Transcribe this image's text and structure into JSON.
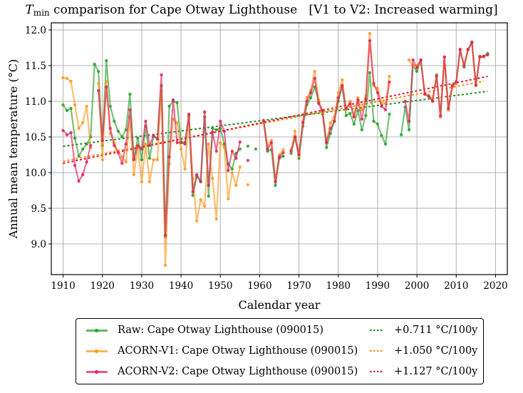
{
  "title": {
    "var": "T",
    "sub": "min",
    "rest": " comparison for Cape Otway Lighthouse",
    "bracket": "[V1 to V2: Increased warming]"
  },
  "chart_data": {
    "type": "line",
    "title": "T_min comparison for Cape Otway Lighthouse   [V1 to V2: Increased warming]",
    "xlabel": "Calendar year",
    "ylabel": "Annual mean temperature (°C)",
    "xlim": [
      1907,
      2023
    ],
    "ylim": [
      8.57,
      12.1
    ],
    "xticks": [
      1910,
      1920,
      1930,
      1940,
      1950,
      1960,
      1970,
      1980,
      1990,
      2000,
      2010,
      2020
    ],
    "yticks": [
      9.0,
      9.5,
      10.0,
      10.5,
      11.0,
      11.5,
      12.0
    ],
    "ytick_labels": [
      "9.0",
      "9.5",
      "10.0",
      "10.5",
      "11.0",
      "11.5",
      "12.0"
    ],
    "grid": true,
    "legend_position": "bottom-outside",
    "series": [
      {
        "name": "Raw: Cape Otway Lighthouse (090015)",
        "color": "#2ca02c",
        "years": [
          1910,
          1911,
          1912,
          1913,
          1914,
          1915,
          1916,
          1917,
          1918,
          1919,
          1920,
          1921,
          1922,
          1923,
          1924,
          1925,
          1926,
          1927,
          1928,
          1929,
          1930,
          1931,
          1932,
          1933,
          1934,
          1935,
          1936,
          1937,
          1938,
          1939,
          1940,
          1941,
          1942,
          1943,
          1944,
          1945,
          1946,
          1947,
          1948,
          1949,
          1950,
          1951,
          1952,
          1953,
          1954,
          1955,
          null,
          1957,
          null,
          1959,
          null,
          1961,
          1962,
          1963,
          1964,
          1965,
          1966,
          null,
          1968,
          1969,
          1970,
          1971,
          1972,
          1973,
          1974,
          1975,
          1976,
          1977,
          1978,
          1979,
          1980,
          1981,
          1982,
          1983,
          1984,
          1985,
          1986,
          1987,
          1988,
          1989,
          1990,
          1991,
          1992,
          1993,
          null,
          1996,
          1997,
          1998,
          1999,
          2000,
          2001,
          2002,
          2003,
          2004,
          2005,
          2006,
          2007,
          2008,
          2009,
          2010,
          2011,
          2012,
          2013,
          2014,
          2015,
          2016,
          2017,
          2018
        ],
        "values": [
          10.95,
          10.87,
          10.9,
          10.48,
          10.23,
          10.33,
          10.4,
          10.5,
          11.52,
          11.42,
          10.38,
          11.57,
          10.93,
          10.72,
          10.58,
          10.5,
          10.6,
          11.1,
          10.2,
          10.48,
          10.18,
          10.65,
          10.2,
          10.51,
          10.47,
          11.22,
          9.1,
          10.93,
          11.0,
          10.98,
          10.43,
          10.42,
          10.8,
          9.68,
          9.95,
          9.87,
          10.78,
          9.67,
          10.62,
          10.6,
          10.62,
          10.4,
          10.12,
          10.05,
          10.27,
          10.33,
          null,
          10.37,
          null,
          10.33,
          null,
          10.72,
          10.3,
          10.32,
          9.82,
          10.2,
          10.23,
          null,
          10.27,
          10.5,
          10.2,
          10.65,
          10.95,
          11.05,
          11.2,
          11.0,
          10.82,
          10.35,
          10.55,
          10.72,
          11.0,
          11.2,
          10.8,
          10.83,
          10.68,
          10.87,
          10.6,
          10.8,
          11.4,
          10.72,
          10.68,
          10.52,
          10.4,
          10.82,
          null,
          10.53,
          10.92,
          10.6,
          11.5,
          11.42,
          11.57,
          11.1,
          11.07,
          11.02,
          11.37,
          10.78,
          11.62,
          10.88,
          11.2,
          11.27,
          11.73,
          11.48,
          11.72,
          11.82,
          11.22,
          11.63,
          11.63,
          11.67
        ]
      },
      {
        "name": "ACORN-V1: Cape Otway Lighthouse (090015)",
        "color": "#ff9a1f",
        "years": [
          1910,
          1911,
          1912,
          1913,
          1914,
          1915,
          1916,
          1917,
          1918,
          1919,
          1920,
          1921,
          1922,
          1923,
          1924,
          1925,
          1926,
          1927,
          1928,
          1929,
          1930,
          1931,
          1932,
          1933,
          1934,
          1935,
          1936,
          1937,
          1938,
          1939,
          1940,
          1941,
          1942,
          1943,
          1944,
          1945,
          1946,
          1947,
          1948,
          1949,
          1950,
          1951,
          1952,
          1953,
          1954,
          1955,
          null,
          1957,
          null,
          1961,
          1962,
          1963,
          1964,
          1965,
          1966,
          null,
          1968,
          1969,
          1970,
          1971,
          1972,
          1973,
          1974,
          1975,
          1976,
          1977,
          1978,
          1979,
          1980,
          1981,
          1982,
          1983,
          1984,
          1985,
          1986,
          1987,
          1988,
          1989,
          1990,
          1991,
          1992,
          1993,
          null,
          1998,
          1999,
          2000,
          2001,
          2002,
          2003,
          2004,
          2005,
          2006,
          2007,
          2008,
          2009,
          2010,
          2011,
          2012,
          2013,
          2014,
          2015,
          2016,
          2017
        ],
        "values": [
          11.33,
          11.32,
          11.28,
          10.95,
          10.62,
          10.7,
          10.93,
          10.35,
          null,
          11.25,
          10.18,
          11.28,
          10.55,
          10.42,
          10.3,
          10.22,
          10.15,
          10.78,
          9.97,
          10.35,
          9.87,
          10.4,
          9.87,
          10.18,
          10.18,
          11.15,
          8.7,
          10.12,
          10.75,
          10.7,
          10.33,
          10.05,
          10.77,
          9.92,
          9.32,
          9.62,
          9.53,
          10.4,
          9.92,
          9.35,
          10.42,
          10.35,
          9.63,
          10.0,
          9.82,
          10.08,
          null,
          9.83,
          null,
          10.73,
          10.38,
          10.45,
          9.88,
          10.25,
          10.32,
          null,
          10.32,
          10.58,
          10.23,
          10.72,
          11.05,
          11.15,
          11.42,
          11.02,
          10.85,
          10.43,
          10.7,
          10.78,
          11.12,
          11.3,
          10.88,
          11.0,
          10.8,
          11.05,
          10.88,
          11.07,
          11.95,
          11.22,
          11.18,
          10.98,
          10.97,
          11.35,
          null,
          11.58,
          11.5,
          11.5,
          11.58,
          11.1,
          11.08,
          11.03,
          11.35,
          10.78,
          11.62,
          10.88,
          11.2,
          11.25,
          11.72,
          11.5,
          11.72,
          11.83,
          11.22,
          11.62,
          11.62
        ]
      },
      {
        "name": "ACORN-V2: Cape Otway Lighthouse (090015)",
        "color": "#e0245a",
        "years": [
          1910,
          1911,
          1912,
          1913,
          1914,
          1915,
          1916,
          1917,
          1918,
          1919,
          1920,
          1921,
          1922,
          1923,
          1924,
          1925,
          1926,
          1927,
          1928,
          1929,
          1930,
          1931,
          1932,
          1933,
          1934,
          1935,
          1936,
          1937,
          1938,
          1939,
          1940,
          1941,
          1942,
          1943,
          1944,
          1945,
          1946,
          1947,
          1948,
          1949,
          1950,
          1951,
          1952,
          1953,
          1954,
          1955,
          null,
          1957,
          null,
          1961,
          1962,
          1963,
          1964,
          1965,
          1966,
          null,
          1968,
          1969,
          1970,
          1971,
          1972,
          1973,
          1974,
          1975,
          1976,
          1977,
          1978,
          1979,
          1980,
          1981,
          1982,
          1983,
          1984,
          1985,
          1986,
          1987,
          1988,
          1989,
          1990,
          1991,
          1992,
          1993,
          null,
          1997,
          1998,
          1999,
          2000,
          2001,
          2002,
          2003,
          2004,
          2005,
          2006,
          2007,
          2008,
          2009,
          2010,
          2011,
          2012,
          2013,
          2014,
          2015,
          2016,
          2017,
          2018
        ],
        "values": [
          10.59,
          10.53,
          10.56,
          10.1,
          9.88,
          9.97,
          10.15,
          10.38,
          null,
          11.15,
          10.45,
          11.2,
          10.62,
          10.38,
          10.28,
          10.13,
          10.4,
          10.88,
          10.18,
          10.38,
          10.33,
          10.72,
          10.38,
          10.52,
          10.47,
          11.37,
          9.12,
          10.22,
          11.02,
          10.42,
          10.42,
          10.4,
          10.82,
          9.73,
          9.97,
          9.88,
          10.85,
          9.82,
          10.57,
          10.3,
          10.72,
          10.58,
          10.03,
          10.3,
          10.2,
          10.43,
          null,
          10.17,
          null,
          10.73,
          10.33,
          10.42,
          9.87,
          10.22,
          10.28,
          null,
          10.3,
          10.5,
          10.25,
          10.7,
          11.0,
          11.12,
          11.32,
          10.97,
          10.87,
          10.42,
          10.62,
          10.72,
          11.05,
          11.22,
          10.9,
          10.97,
          10.78,
          11.02,
          10.75,
          11.03,
          11.85,
          11.25,
          11.12,
          10.93,
          10.88,
          11.27,
          null,
          11.0,
          10.72,
          11.58,
          11.47,
          11.58,
          11.1,
          11.07,
          11.0,
          11.35,
          10.8,
          11.62,
          10.9,
          11.22,
          11.27,
          11.72,
          11.5,
          11.73,
          11.83,
          11.23,
          11.62,
          11.63,
          11.65
        ]
      }
    ],
    "trendlines": [
      {
        "label": "+0.711 °C/100y",
        "color": "#228b22",
        "x": [
          1910,
          2018
        ],
        "y": [
          10.37,
          11.14
        ]
      },
      {
        "label": "+1.050 °C/100y",
        "color": "#ff8c00",
        "x": [
          1910,
          2017
        ],
        "y": [
          10.16,
          11.28
        ]
      },
      {
        "label": "+1.127 °C/100y",
        "color": "#dc143c",
        "x": [
          1910,
          2018
        ],
        "y": [
          10.13,
          11.35
        ]
      }
    ]
  },
  "legend": {
    "entries": [
      {
        "label": "Raw: Cape Otway Lighthouse (090015)",
        "color": "#5aaa52",
        "trend": "+0.711 °C/100y",
        "trend_color": "#228b22"
      },
      {
        "label": "ACORN-V1: Cape Otway Lighthouse (090015)",
        "color": "#ffab4a",
        "trend": "+1.050 °C/100y",
        "trend_color": "#ff8c00"
      },
      {
        "label": "ACORN-V2: Cape Otway Lighthouse (090015)",
        "color": "#e54b78",
        "trend": "+1.127 °C/100y",
        "trend_color": "#dc143c"
      }
    ]
  }
}
